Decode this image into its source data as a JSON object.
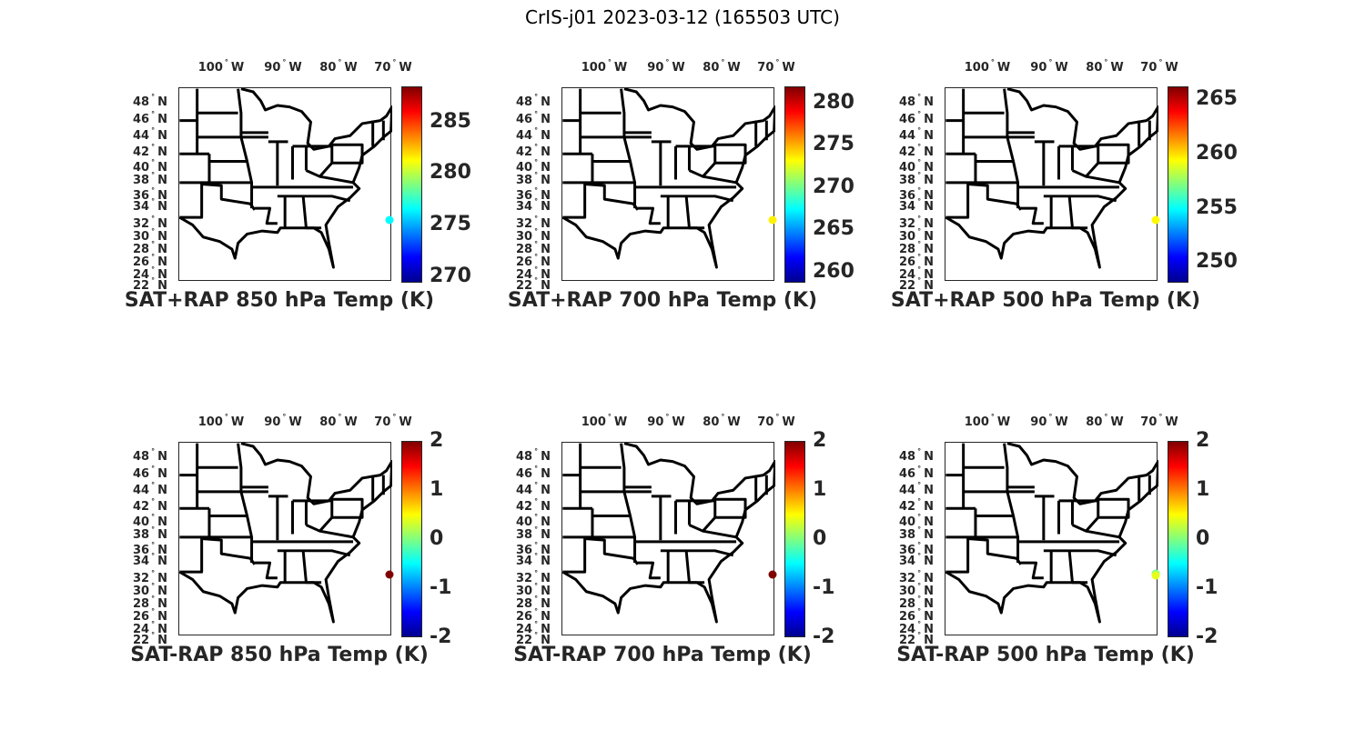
{
  "figure": {
    "title": "CrIS-j01 2023-03-12 (165503 UTC)"
  },
  "lon_labels": [
    "100",
    "90",
    "80",
    "70"
  ],
  "lon_suffix": "W",
  "lat_labels": [
    "48",
    "46",
    "44",
    "42",
    "40",
    "38",
    "36",
    "34",
    "32",
    "30",
    "28",
    "26",
    "24",
    "22"
  ],
  "lat_suffix": "N",
  "colors": {
    "axis": "#262626",
    "map_lines": "#000000"
  },
  "panels": [
    {
      "title": "SAT+RAP 850 hPa Temp (K)",
      "clim": [
        269.4,
        288.4
      ],
      "ticks": [
        "270",
        "275",
        "280",
        "285"
      ],
      "tick_values": [
        270,
        275,
        280,
        285
      ],
      "points": [
        {
          "lon": -70,
          "lat": 32,
          "value": 276.5
        }
      ]
    },
    {
      "title": "SAT+RAP 700 hPa Temp (K)",
      "clim": [
        258.7,
        281.9
      ],
      "ticks": [
        "260",
        "265",
        "270",
        "275",
        "280"
      ],
      "tick_values": [
        260,
        265,
        270,
        275,
        280
      ],
      "points": [
        {
          "lon": -70,
          "lat": 32,
          "value": 273.5
        }
      ]
    },
    {
      "title": "SAT+RAP 500 hPa Temp (K)",
      "clim": [
        248.1,
        266.2
      ],
      "ticks": [
        "250",
        "255",
        "260",
        "265"
      ],
      "tick_values": [
        250,
        255,
        260,
        265
      ],
      "points": [
        {
          "lon": -70,
          "lat": 32,
          "value": 259.5
        }
      ]
    },
    {
      "title": "SAT-RAP 850 hPa Temp (K)",
      "clim": [
        -2,
        2
      ],
      "ticks": [
        "-2",
        "-1",
        "0",
        "1",
        "2"
      ],
      "tick_values": [
        -2,
        -1,
        0,
        1,
        2
      ],
      "points": [
        {
          "lon": -70,
          "lat": 32,
          "value": 2.0
        }
      ]
    },
    {
      "title": "SAT-RAP 700 hPa Temp (K)",
      "clim": [
        -2,
        2
      ],
      "ticks": [
        "-2",
        "-1",
        "0",
        "1",
        "2"
      ],
      "tick_values": [
        -2,
        -1,
        0,
        1,
        2
      ],
      "points": [
        {
          "lon": -70,
          "lat": 32,
          "value": 2.0
        }
      ]
    },
    {
      "title": "SAT-RAP 500 hPa Temp (K)",
      "clim": [
        -2,
        2
      ],
      "ticks": [
        "-2",
        "-1",
        "0",
        "1",
        "2"
      ],
      "tick_values": [
        -2,
        -1,
        0,
        1,
        2
      ],
      "points": [
        {
          "lon": -70,
          "lat": 32.2,
          "value": 0.0
        },
        {
          "lon": -70,
          "lat": 31.9,
          "value": 0.4
        }
      ]
    }
  ]
}
